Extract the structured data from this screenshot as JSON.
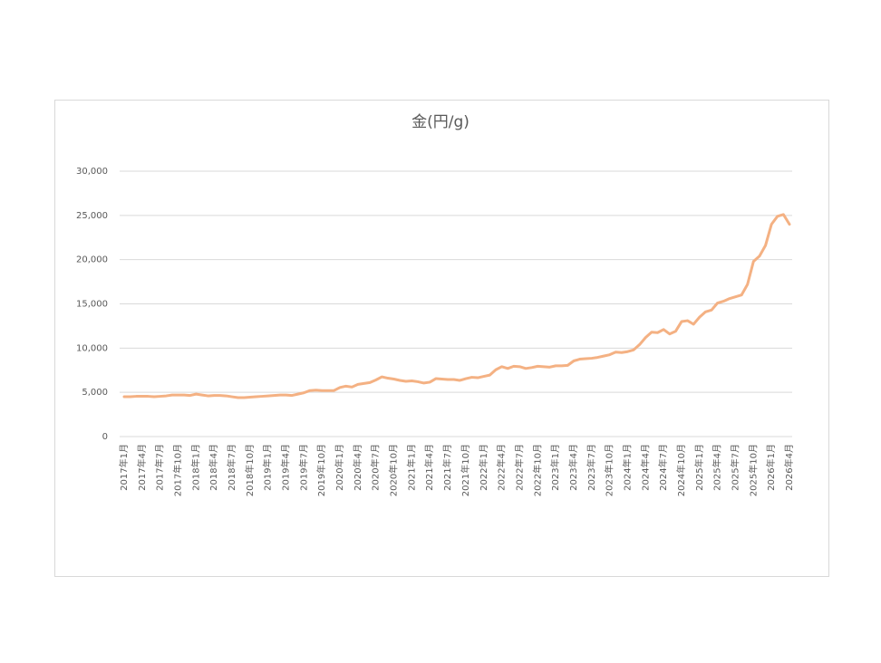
{
  "chart_data": {
    "type": "line",
    "title": "金(円/g)",
    "categories": [
      "2017年1月",
      null,
      null,
      "2017年4月",
      null,
      null,
      "2017年7月",
      null,
      null,
      "2017年10月",
      null,
      null,
      "2018年1月",
      null,
      null,
      "2018年4月",
      null,
      null,
      "2018年7月",
      null,
      null,
      "2018年10月",
      null,
      null,
      "2019年1月",
      null,
      null,
      "2019年4月",
      null,
      null,
      "2019年7月",
      null,
      null,
      "2019年10月",
      null,
      null,
      "2020年1月",
      null,
      null,
      "2020年4月",
      null,
      null,
      "2020年7月",
      null,
      null,
      "2020年10月",
      null,
      null,
      "2021年1月",
      null,
      null,
      "2021年4月",
      null,
      null,
      "2021年7月",
      null,
      null,
      "2021年10月",
      null,
      null,
      "2022年1月",
      null,
      null,
      "2022年4月",
      null,
      null,
      "2022年7月",
      null,
      null,
      "2022年10月",
      null,
      null,
      "2023年1月",
      null,
      null,
      "2023年4月",
      null,
      null,
      "2023年7月",
      null,
      null,
      "2023年10月",
      null,
      null,
      "2024年1月",
      null,
      null,
      "2024年4月",
      null,
      null,
      "2024年7月",
      null,
      null,
      "2024年10月",
      null,
      null,
      "2025年1月",
      null,
      null,
      "2025年4月",
      null,
      null,
      "2025年7月",
      null,
      null,
      "2025年10月",
      null,
      null,
      "2026年1月",
      null,
      null,
      "2026年4月"
    ],
    "series": [
      {
        "name": "金",
        "color": "#f4b183",
        "values": [
          4500,
          4500,
          4550,
          4550,
          4550,
          4500,
          4550,
          4600,
          4700,
          4700,
          4700,
          4650,
          4800,
          4700,
          4600,
          4650,
          4650,
          4600,
          4500,
          4400,
          4400,
          4450,
          4500,
          4550,
          4600,
          4650,
          4700,
          4700,
          4650,
          4800,
          4950,
          5200,
          5250,
          5200,
          5200,
          5200,
          5550,
          5700,
          5600,
          5900,
          6000,
          6100,
          6400,
          6750,
          6600,
          6500,
          6350,
          6250,
          6300,
          6200,
          6050,
          6150,
          6550,
          6500,
          6450,
          6450,
          6350,
          6550,
          6700,
          6650,
          6800,
          6950,
          7550,
          7900,
          7700,
          7950,
          7900,
          7700,
          7800,
          7950,
          7900,
          7850,
          8000,
          8000,
          8050,
          8550,
          8750,
          8800,
          8850,
          8950,
          9100,
          9250,
          9550,
          9500,
          9600,
          9800,
          10400,
          11200,
          11800,
          11750,
          12100,
          11600,
          11900,
          13000,
          13100,
          12700,
          13500,
          14100,
          14300,
          15100,
          15300,
          15600,
          15800,
          16000,
          17200,
          19800,
          20400,
          21600,
          24000,
          24900,
          25100,
          24000
        ]
      }
    ],
    "ylim": [
      0,
      30000
    ],
    "yticks": [
      0,
      {
        "value": 5000,
        "label": "5,000"
      },
      {
        "value": 10000,
        "label": "10,000"
      },
      {
        "value": 15000,
        "label": "15,000"
      },
      {
        "value": 20000,
        "label": "20,000"
      },
      {
        "value": 25000,
        "label": "25,000"
      },
      {
        "value": 30000,
        "label": "30,000"
      }
    ],
    "grid": true
  }
}
